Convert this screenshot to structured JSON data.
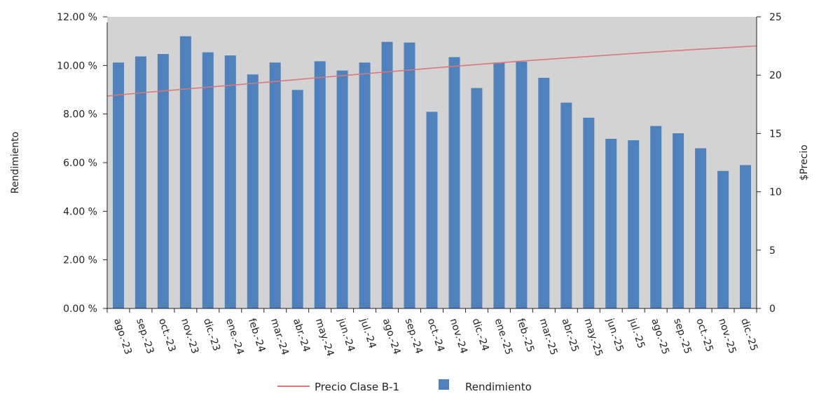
{
  "chart_data": {
    "type": "bar",
    "categories": [
      "ago.-23",
      "sep.-23",
      "oct.-23",
      "nov.-23",
      "dic.-23",
      "ene.-24",
      "feb.-24",
      "mar.-24",
      "abr.-24",
      "may.-24",
      "jun.-24",
      "jul.-24",
      "ago.-24",
      "sep.-24",
      "oct.-24",
      "nov.-24",
      "dic.-24",
      "ene.-25",
      "feb.-25",
      "mar.-25",
      "abr.-25",
      "may.-25",
      "jun.-25",
      "jul.-25",
      "ago.-25",
      "sep.-25",
      "oct.-25",
      "nov.-25",
      "dic.-25"
    ],
    "series": [
      {
        "name": "Rendimiento",
        "type": "bar",
        "axis": "left",
        "color": "#4f81bd",
        "values": [
          10.12,
          10.37,
          10.47,
          11.2,
          10.54,
          10.41,
          9.63,
          10.12,
          8.99,
          10.17,
          9.79,
          10.12,
          10.97,
          10.94,
          8.09,
          10.34,
          9.07,
          10.12,
          10.15,
          9.49,
          8.47,
          7.85,
          6.98,
          6.92,
          7.51,
          7.21,
          6.59,
          5.66,
          5.9
        ]
      },
      {
        "name": "Precio Clase B-1",
        "type": "line",
        "axis": "right",
        "color": "#d9797a",
        "values": [
          18.3,
          18.48,
          18.65,
          18.81,
          18.97,
          19.13,
          19.29,
          19.46,
          19.63,
          19.8,
          19.96,
          20.12,
          20.28,
          20.44,
          20.6,
          20.76,
          20.91,
          21.06,
          21.2,
          21.34,
          21.47,
          21.6,
          21.73,
          21.86,
          21.99,
          22.11,
          22.23,
          22.34,
          22.45
        ]
      }
    ],
    "ylabel": "Rendimiento",
    "y2label": "$Precio",
    "ylim": [
      0,
      12
    ],
    "y2lim": [
      0,
      25
    ],
    "yticks": [
      "0.00 %",
      "2.00 %",
      "4.00 %",
      "6.00 %",
      "8.00 %",
      "10.00 %",
      "12.00 %"
    ],
    "y2ticks": [
      "0",
      "5",
      "10",
      "15",
      "20",
      "25"
    ],
    "grid": false,
    "legend": "bottom-center",
    "plot_background": "#d3d3d3"
  }
}
